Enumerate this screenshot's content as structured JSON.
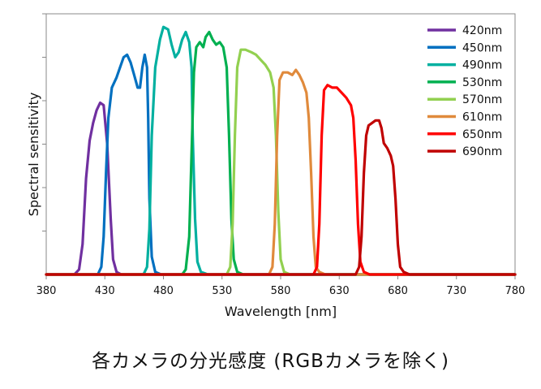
{
  "caption": "各カメラの分光感度 (RGBカメラを除く)",
  "chart_data": {
    "type": "line",
    "title": "",
    "xlabel": "Wavelength [nm]",
    "ylabel": "Spectral sensitivity",
    "xlim": [
      380,
      780
    ],
    "ylim": [
      0,
      100
    ],
    "x_ticks": [
      380,
      430,
      480,
      530,
      580,
      630,
      680,
      730,
      780
    ],
    "y_tick_labels": "none",
    "grid": false,
    "legend_position": "top-right",
    "series": [
      {
        "name": "420nm",
        "color": "#7030a0",
        "points": [
          [
            380,
            0
          ],
          [
            404,
            0
          ],
          [
            408,
            2
          ],
          [
            411,
            12
          ],
          [
            414,
            38
          ],
          [
            417,
            53
          ],
          [
            420,
            60
          ],
          [
            423,
            65
          ],
          [
            426,
            68
          ],
          [
            429,
            67
          ],
          [
            432,
            52
          ],
          [
            435,
            22
          ],
          [
            437,
            6
          ],
          [
            440,
            1
          ],
          [
            444,
            0
          ],
          [
            780,
            0
          ]
        ]
      },
      {
        "name": "450nm",
        "color": "#0070c0",
        "points": [
          [
            380,
            0
          ],
          [
            424,
            0
          ],
          [
            427,
            3
          ],
          [
            429,
            15
          ],
          [
            431,
            40
          ],
          [
            433,
            62
          ],
          [
            436,
            74
          ],
          [
            440,
            78
          ],
          [
            443,
            82
          ],
          [
            446,
            86
          ],
          [
            449,
            87
          ],
          [
            452,
            84
          ],
          [
            455,
            79
          ],
          [
            458,
            74
          ],
          [
            460,
            74
          ],
          [
            462,
            82
          ],
          [
            464,
            87
          ],
          [
            466,
            82
          ],
          [
            467,
            62
          ],
          [
            468,
            30
          ],
          [
            470,
            7
          ],
          [
            473,
            1
          ],
          [
            478,
            0
          ],
          [
            780,
            0
          ]
        ]
      },
      {
        "name": "490nm",
        "color": "#00b0a0",
        "points": [
          [
            380,
            0
          ],
          [
            463,
            0
          ],
          [
            466,
            3
          ],
          [
            468,
            18
          ],
          [
            470,
            55
          ],
          [
            473,
            82
          ],
          [
            477,
            93
          ],
          [
            480,
            98
          ],
          [
            484,
            97
          ],
          [
            487,
            91
          ],
          [
            490,
            86
          ],
          [
            493,
            88
          ],
          [
            496,
            93
          ],
          [
            499,
            96
          ],
          [
            502,
            92
          ],
          [
            504,
            82
          ],
          [
            505,
            55
          ],
          [
            507,
            22
          ],
          [
            509,
            5
          ],
          [
            512,
            1
          ],
          [
            518,
            0
          ],
          [
            780,
            0
          ]
        ]
      },
      {
        "name": "530nm",
        "color": "#00b050",
        "points": [
          [
            380,
            0
          ],
          [
            496,
            0
          ],
          [
            499,
            2
          ],
          [
            502,
            15
          ],
          [
            504,
            48
          ],
          [
            506,
            80
          ],
          [
            508,
            90
          ],
          [
            511,
            92
          ],
          [
            514,
            90
          ],
          [
            516,
            94
          ],
          [
            519,
            96
          ],
          [
            522,
            93
          ],
          [
            525,
            91
          ],
          [
            528,
            92
          ],
          [
            531,
            90
          ],
          [
            534,
            82
          ],
          [
            536,
            55
          ],
          [
            538,
            22
          ],
          [
            540,
            6
          ],
          [
            543,
            1
          ],
          [
            548,
            0
          ],
          [
            780,
            0
          ]
        ]
      },
      {
        "name": "570nm",
        "color": "#92d050",
        "points": [
          [
            380,
            0
          ],
          [
            534,
            0
          ],
          [
            537,
            3
          ],
          [
            539,
            20
          ],
          [
            541,
            55
          ],
          [
            543,
            82
          ],
          [
            546,
            89
          ],
          [
            550,
            89
          ],
          [
            555,
            88
          ],
          [
            559,
            87
          ],
          [
            563,
            85
          ],
          [
            567,
            83
          ],
          [
            571,
            80
          ],
          [
            574,
            74
          ],
          [
            576,
            55
          ],
          [
            578,
            25
          ],
          [
            580,
            6
          ],
          [
            583,
            1
          ],
          [
            588,
            0
          ],
          [
            780,
            0
          ]
        ]
      },
      {
        "name": "610nm",
        "color": "#e08a3c",
        "points": [
          [
            380,
            0
          ],
          [
            570,
            0
          ],
          [
            573,
            3
          ],
          [
            575,
            20
          ],
          [
            577,
            55
          ],
          [
            579,
            77
          ],
          [
            582,
            80
          ],
          [
            586,
            80
          ],
          [
            590,
            79
          ],
          [
            593,
            81
          ],
          [
            596,
            79
          ],
          [
            599,
            76
          ],
          [
            602,
            72
          ],
          [
            604,
            62
          ],
          [
            606,
            40
          ],
          [
            608,
            15
          ],
          [
            610,
            3
          ],
          [
            613,
            1
          ],
          [
            618,
            0
          ],
          [
            780,
            0
          ]
        ]
      },
      {
        "name": "650nm",
        "color": "#ff0000",
        "points": [
          [
            380,
            0
          ],
          [
            608,
            0
          ],
          [
            611,
            3
          ],
          [
            613,
            20
          ],
          [
            615,
            55
          ],
          [
            617,
            73
          ],
          [
            620,
            75
          ],
          [
            624,
            74
          ],
          [
            628,
            74
          ],
          [
            632,
            72
          ],
          [
            636,
            70
          ],
          [
            640,
            67
          ],
          [
            642,
            62
          ],
          [
            644,
            45
          ],
          [
            646,
            20
          ],
          [
            648,
            5
          ],
          [
            651,
            1
          ],
          [
            656,
            0
          ],
          [
            780,
            0
          ]
        ]
      },
      {
        "name": "690nm",
        "color": "#c00000",
        "points": [
          [
            380,
            0
          ],
          [
            644,
            0
          ],
          [
            647,
            3
          ],
          [
            649,
            15
          ],
          [
            651,
            40
          ],
          [
            653,
            55
          ],
          [
            655,
            59
          ],
          [
            658,
            60
          ],
          [
            661,
            61
          ],
          [
            664,
            61
          ],
          [
            666,
            58
          ],
          [
            668,
            52
          ],
          [
            671,
            50
          ],
          [
            674,
            47
          ],
          [
            676,
            43
          ],
          [
            678,
            30
          ],
          [
            680,
            12
          ],
          [
            682,
            3
          ],
          [
            685,
            1
          ],
          [
            690,
            0
          ],
          [
            780,
            0
          ]
        ]
      }
    ]
  }
}
